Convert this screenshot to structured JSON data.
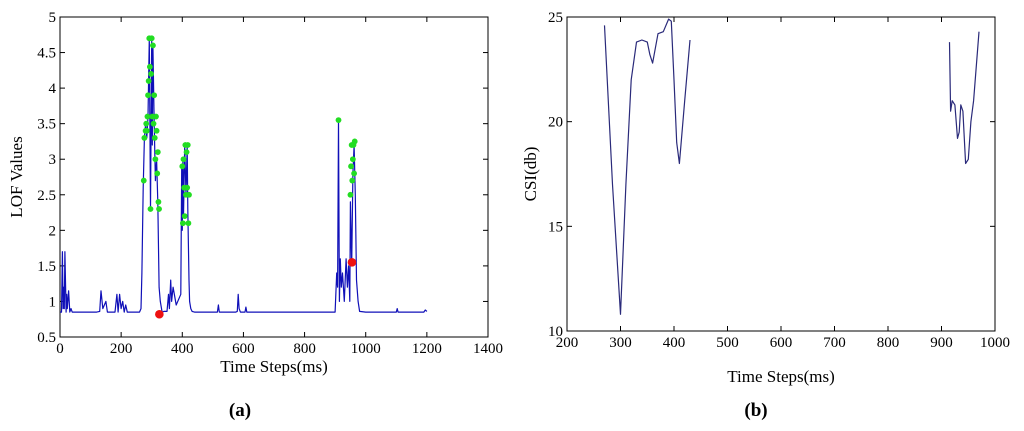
{
  "chart_data": [
    {
      "type": "line",
      "caption": "(a)",
      "xlabel": "Time Steps(ms)",
      "ylabel": "LOF Values",
      "xlim": [
        0,
        1400
      ],
      "ylim": [
        0.5,
        5
      ],
      "xticks": [
        0,
        200,
        400,
        600,
        800,
        1000,
        1200,
        1400
      ],
      "yticks": [
        0.5,
        1,
        1.5,
        2,
        2.5,
        3,
        3.5,
        4,
        4.5,
        5
      ],
      "xtick_labels": [
        "0",
        "200",
        "400",
        "600",
        "800",
        "1000",
        "1200",
        "1400"
      ],
      "ytick_labels": [
        "0.5",
        "1",
        "1.5",
        "2",
        "2.5",
        "3",
        "3.5",
        "4",
        "4.5",
        "5"
      ],
      "series": [
        {
          "color": "#1010b8",
          "x": [
            0,
            5,
            8,
            10,
            12,
            14,
            16,
            20,
            22,
            24,
            28,
            32,
            36,
            40,
            120,
            130,
            134,
            140,
            150,
            155,
            180,
            186,
            190,
            195,
            200,
            205,
            210,
            215,
            220,
            230,
            260,
            265,
            268,
            272,
            276,
            280,
            284,
            288,
            292,
            296,
            300,
            302,
            304,
            308,
            312,
            316,
            320,
            324,
            328,
            334,
            340,
            350,
            355,
            358,
            362,
            365,
            370,
            380,
            395,
            398,
            400,
            402,
            404,
            408,
            412,
            416,
            418,
            420,
            422,
            424,
            428,
            432,
            440,
            460,
            515,
            518,
            521,
            575,
            580,
            583,
            586,
            590,
            605,
            608,
            611,
            800,
            880,
            900,
            905,
            908,
            911,
            914,
            917,
            920,
            924,
            930,
            936,
            940,
            944,
            948,
            950,
            954,
            958,
            962,
            966,
            970,
            975,
            980,
            1000,
            1100,
            1103,
            1106,
            1190,
            1195,
            1200
          ],
          "y": [
            0.85,
            0.85,
            1.7,
            0.9,
            1.2,
            0.9,
            1.7,
            0.85,
            1.1,
            0.9,
            1.15,
            0.85,
            0.9,
            0.85,
            0.85,
            0.86,
            1.15,
            0.9,
            1.0,
            0.85,
            0.85,
            1.1,
            0.85,
            1.1,
            0.9,
            1.0,
            0.85,
            0.95,
            0.85,
            0.85,
            0.85,
            0.9,
            1.4,
            2.6,
            3.3,
            3.5,
            3.3,
            3.6,
            4.7,
            2.3,
            4.7,
            3.2,
            4.6,
            3.5,
            2.7,
            3.0,
            2.4,
            1.2,
            1.0,
            0.85,
            0.86,
            0.86,
            1.1,
            0.9,
            1.3,
            1.0,
            1.2,
            0.95,
            1.1,
            2.9,
            2.0,
            3.0,
            2.2,
            3.2,
            2.5,
            3.2,
            2.3,
            1.8,
            1.3,
            1.0,
            0.9,
            0.86,
            0.85,
            0.85,
            0.85,
            0.95,
            0.85,
            0.85,
            0.86,
            1.1,
            0.9,
            0.85,
            0.85,
            0.92,
            0.85,
            0.85,
            0.85,
            0.85,
            1.4,
            1.2,
            3.55,
            1.0,
            1.6,
            1.2,
            1.4,
            1.0,
            1.6,
            1.2,
            1.5,
            1.0,
            2.4,
            1.5,
            2.8,
            3.2,
            2.5,
            1.3,
            1.0,
            0.86,
            0.85,
            0.85,
            0.9,
            0.85,
            0.85,
            0.88,
            0.86
          ]
        },
        {
          "name": "green markers",
          "color": "#22dd22",
          "marker": "circle",
          "x": [
            274,
            276,
            280,
            282,
            284,
            286,
            288,
            290,
            292,
            294,
            296,
            298,
            300,
            302,
            304,
            306,
            308,
            310,
            312,
            314,
            316,
            318,
            320,
            322,
            324,
            400,
            402,
            404,
            406,
            408,
            410,
            412,
            414,
            416,
            418,
            420,
            422,
            911,
            950,
            952,
            954,
            956,
            958,
            960,
            962,
            964
          ],
          "y": [
            2.7,
            3.3,
            3.4,
            3.5,
            3.4,
            3.6,
            3.9,
            4.1,
            4.7,
            4.3,
            2.3,
            4.2,
            4.7,
            3.6,
            4.6,
            3.5,
            3.9,
            3.3,
            3.0,
            3.6,
            3.4,
            2.8,
            3.1,
            2.4,
            2.3,
            2.9,
            2.1,
            3.0,
            2.6,
            2.2,
            3.2,
            2.5,
            3.1,
            2.6,
            3.2,
            2.1,
            2.5,
            3.55,
            2.5,
            2.9,
            3.2,
            2.7,
            3.0,
            3.2,
            2.8,
            3.25
          ]
        },
        {
          "name": "red markers",
          "color": "#ee1111",
          "marker": "circle",
          "x": [
            325,
            955
          ],
          "y": [
            0.82,
            1.55
          ]
        }
      ]
    },
    {
      "type": "line",
      "caption": "(b)",
      "xlabel": "Time Steps(ms)",
      "ylabel": "CSI(db)",
      "xlim": [
        200,
        1000
      ],
      "ylim": [
        10,
        25
      ],
      "xticks": [
        200,
        300,
        400,
        500,
        600,
        700,
        800,
        900,
        1000
      ],
      "yticks": [
        10,
        15,
        20,
        25
      ],
      "xtick_labels": [
        "200",
        "300",
        "400",
        "500",
        "600",
        "700",
        "800",
        "900",
        "1000"
      ],
      "ytick_labels": [
        "10",
        "15",
        "20",
        "25"
      ],
      "series": [
        {
          "color": "#2a2a7a",
          "segments": [
            {
              "x": [
                270,
                285,
                300,
                310,
                320,
                330,
                340,
                350,
                355,
                360,
                370,
                380,
                390,
                395,
                400,
                405,
                410,
                420,
                430
              ],
              "y": [
                24.6,
                17.0,
                10.8,
                17.0,
                22.0,
                23.8,
                23.9,
                23.8,
                23.2,
                22.8,
                24.2,
                24.3,
                24.9,
                24.8,
                22.0,
                19.0,
                18.0,
                21.0,
                23.9
              ]
            },
            {
              "x": [
                915,
                917,
                920,
                925,
                930,
                933,
                936,
                940,
                945,
                950,
                955,
                960,
                970
              ],
              "y": [
                23.8,
                20.5,
                21.0,
                20.8,
                19.2,
                19.5,
                20.8,
                20.5,
                18.0,
                18.2,
                20.0,
                21.0,
                24.3
              ]
            }
          ]
        }
      ]
    }
  ]
}
